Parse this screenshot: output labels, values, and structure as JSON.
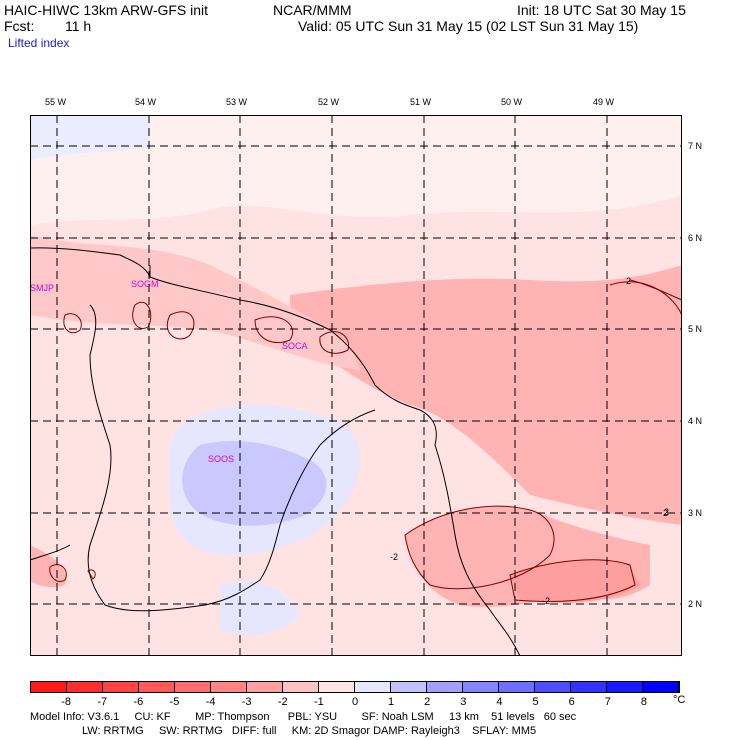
{
  "header": {
    "model": "HAIC-HIWC 13km ARW-GFS init",
    "org": "NCAR/MMM",
    "init": "Init: 18 UTC Sat 30 May 15",
    "fcst_label": "Fcst:",
    "fcst_value": "11 h",
    "valid": "Valid: 05 UTC Sun 31 May 15 (02 LST Sun 31 May 15)",
    "field": "Lifted index"
  },
  "map": {
    "lon_labels": [
      "55 W",
      "54 W",
      "53 W",
      "52 W",
      "51 W",
      "50 W",
      "49 W"
    ],
    "lat_labels": [
      "7 N",
      "6 N",
      "5 N",
      "4 N",
      "3 N",
      "2 N"
    ],
    "stations": [
      "SMJP",
      "SOGM",
      "SOCA",
      "SOOS"
    ],
    "contour_labels": [
      "2",
      "2",
      "-2",
      "2",
      "-2"
    ],
    "colors": {
      "neg_light": "#ffe3e3",
      "neg_mid": "#ffc4c4",
      "neg_strong": "#ff9e9e",
      "pos_light": "#e6e6ff",
      "pos_mid": "#c9c9ff",
      "station": "#d400d4"
    }
  },
  "colorbar": {
    "labels": [
      "-8",
      "-7",
      "-6",
      "-5",
      "-4",
      "-3",
      "-2",
      "-1",
      "0",
      "1",
      "2",
      "3",
      "4",
      "5",
      "6",
      "7",
      "8"
    ],
    "unit": "°C",
    "colors": [
      "#ff1a1a",
      "#ff2f2f",
      "#ff4444",
      "#ff5959",
      "#ff6e6e",
      "#ff8585",
      "#ffa0a0",
      "#ffc2c2",
      "#ffe6e6",
      "#e6e6ff",
      "#c2c2ff",
      "#a0a0ff",
      "#8585ff",
      "#6e6eff",
      "#4f4fff",
      "#3333ff",
      "#1a1aff",
      "#0000ff"
    ]
  },
  "footer": {
    "line1": "Model Info: V3.6.1     CU: KF        MP: Thompson      PBL: YSU        SF: Noah LSM     13 km    51 levels   60 sec",
    "line2": "                 LW: RRTMG     SW: RRTMG   DIFF: full     KM: 2D Smagor DAMP: Rayleigh3    SFLAY: MM5"
  }
}
